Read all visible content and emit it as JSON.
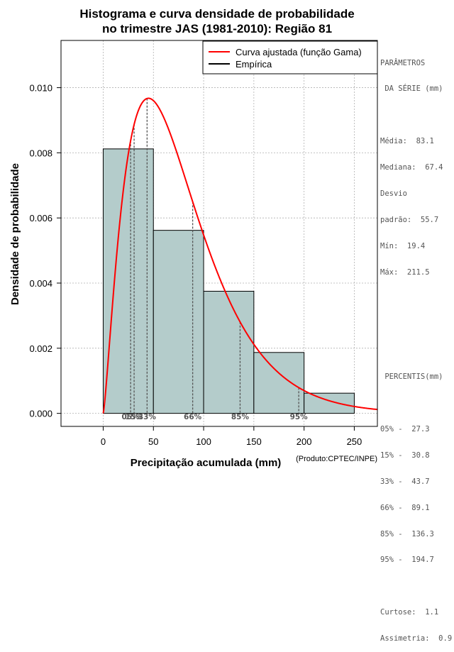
{
  "chart_data": {
    "type": "bar",
    "title_lines": [
      "Histograma e curva densidade de probabilidade",
      "no trimestre JAS (1981-2010): Região 81"
    ],
    "xlabel": "Precipitação acumulada (mm)",
    "ylabel": "Densidade de probabilidade",
    "credit": "(Produto:CPTEC/INPE)",
    "xlim": [
      -42,
      273
    ],
    "ylim": [
      -0.0004,
      0.01145
    ],
    "x_ticks": [
      0,
      50,
      100,
      150,
      200,
      250
    ],
    "y_ticks": [
      0.0,
      0.002,
      0.004,
      0.006,
      0.008,
      0.01
    ],
    "y_tick_labels": [
      "0.000",
      "0.002",
      "0.004",
      "0.006",
      "0.008",
      "0.010"
    ],
    "bins": [
      {
        "x0": 0,
        "x1": 50,
        "density": 0.00812
      },
      {
        "x0": 50,
        "x1": 100,
        "density": 0.00562
      },
      {
        "x0": 100,
        "x1": 150,
        "density": 0.00375
      },
      {
        "x0": 150,
        "x1": 200,
        "density": 0.00187
      },
      {
        "x0": 200,
        "x1": 250,
        "density": 0.00062
      }
    ],
    "gamma_fit": {
      "shape": 2.35,
      "scale": 33.4
    },
    "percentiles": [
      {
        "label": "05%",
        "value": 27.3
      },
      {
        "label": "15%",
        "value": 30.8
      },
      {
        "label": "33%",
        "value": 43.7
      },
      {
        "label": "66%",
        "value": 89.1
      },
      {
        "label": "85%",
        "value": 136.3
      },
      {
        "label": "95%",
        "value": 194.7
      }
    ],
    "legend": {
      "position": "top-right",
      "entries": [
        {
          "label": "Curva ajustada (função Gama)",
          "color": "#ff0000"
        },
        {
          "label": "Empírica",
          "color": "#000000"
        }
      ]
    },
    "grid": true,
    "colors": {
      "bar_fill": "#b4cccb",
      "curve": "#ff0000",
      "percentile_line": "#555555",
      "grid": "#b0b0b0"
    }
  },
  "stats_panel": {
    "params_title": "PARÂMETROS",
    "params_subtitle": " DA SÉRIE (mm)",
    "mean": "Média:  83.1",
    "median": "Mediana:  67.4",
    "sd_line1": "Desvio",
    "sd_line2": "padrão:  55.7",
    "min": "Mín:  19.4",
    "max": "Máx:  211.5",
    "percentis_title": " PERCENTIS(mm)",
    "p05": "05% -  27.3",
    "p15": "15% -  30.8",
    "p33": "33% -  43.7",
    "p66": "66% -  89.1",
    "p85": "85% -  136.3",
    "p95": "95% -  194.7",
    "kurtosis": "Curtose:  1.1",
    "skewness": "Assimetria:  0.9"
  }
}
